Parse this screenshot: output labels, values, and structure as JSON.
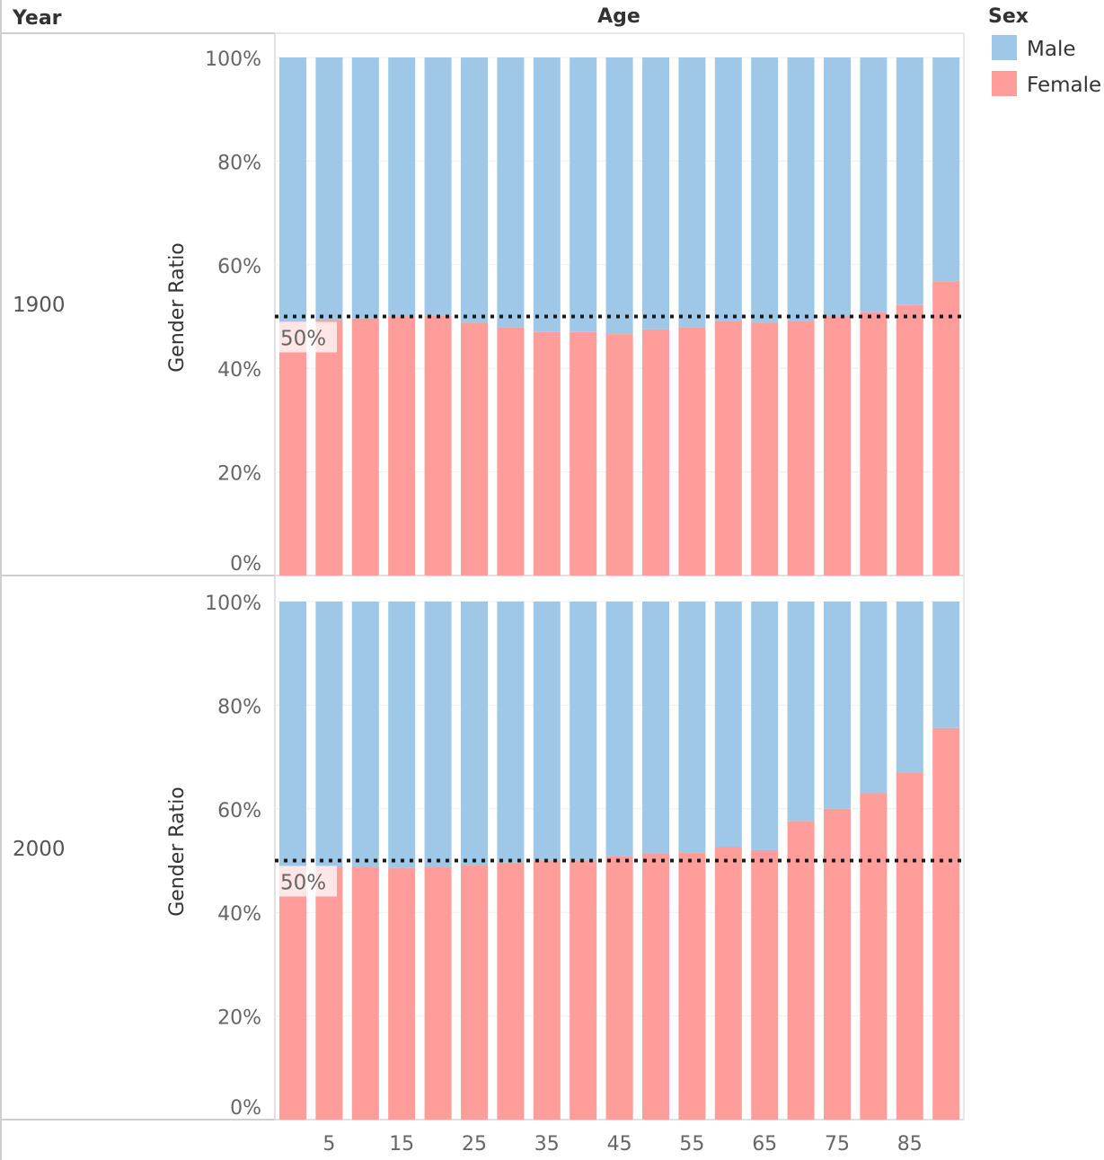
{
  "headers": {
    "year": "Year",
    "age": "Age"
  },
  "legend": {
    "title": "Sex",
    "items": [
      {
        "label": "Male",
        "color": "#9fc8e8"
      },
      {
        "label": "Female",
        "color": "#ff9d9a"
      }
    ]
  },
  "reference_label": "50%",
  "chart_data": {
    "type": "bar",
    "stacked": true,
    "x_field": "Age",
    "x": [
      0,
      5,
      10,
      15,
      20,
      25,
      30,
      35,
      40,
      45,
      50,
      55,
      60,
      65,
      70,
      75,
      80,
      85,
      90
    ],
    "x_tick_labels": [
      "5",
      "15",
      "25",
      "35",
      "45",
      "55",
      "65",
      "75",
      "85"
    ],
    "ylabel": "Gender Ratio",
    "ylim": [
      0,
      1
    ],
    "y_ticks": [
      "0%",
      "20%",
      "40%",
      "60%",
      "80%",
      "100%"
    ],
    "reference_line": 0.5,
    "series_order": [
      "Female",
      "Male"
    ],
    "panels": [
      {
        "year": "1900",
        "female": [
          0.49,
          0.493,
          0.496,
          0.5,
          0.502,
          0.488,
          0.479,
          0.47,
          0.47,
          0.466,
          0.475,
          0.479,
          0.492,
          0.488,
          0.492,
          0.5,
          0.508,
          0.522,
          0.568
        ]
      },
      {
        "year": "2000",
        "female": [
          0.488,
          0.488,
          0.488,
          0.486,
          0.488,
          0.492,
          0.496,
          0.5,
          0.5,
          0.508,
          0.514,
          0.516,
          0.526,
          0.52,
          0.576,
          0.6,
          0.63,
          0.67,
          0.756
        ]
      }
    ]
  }
}
